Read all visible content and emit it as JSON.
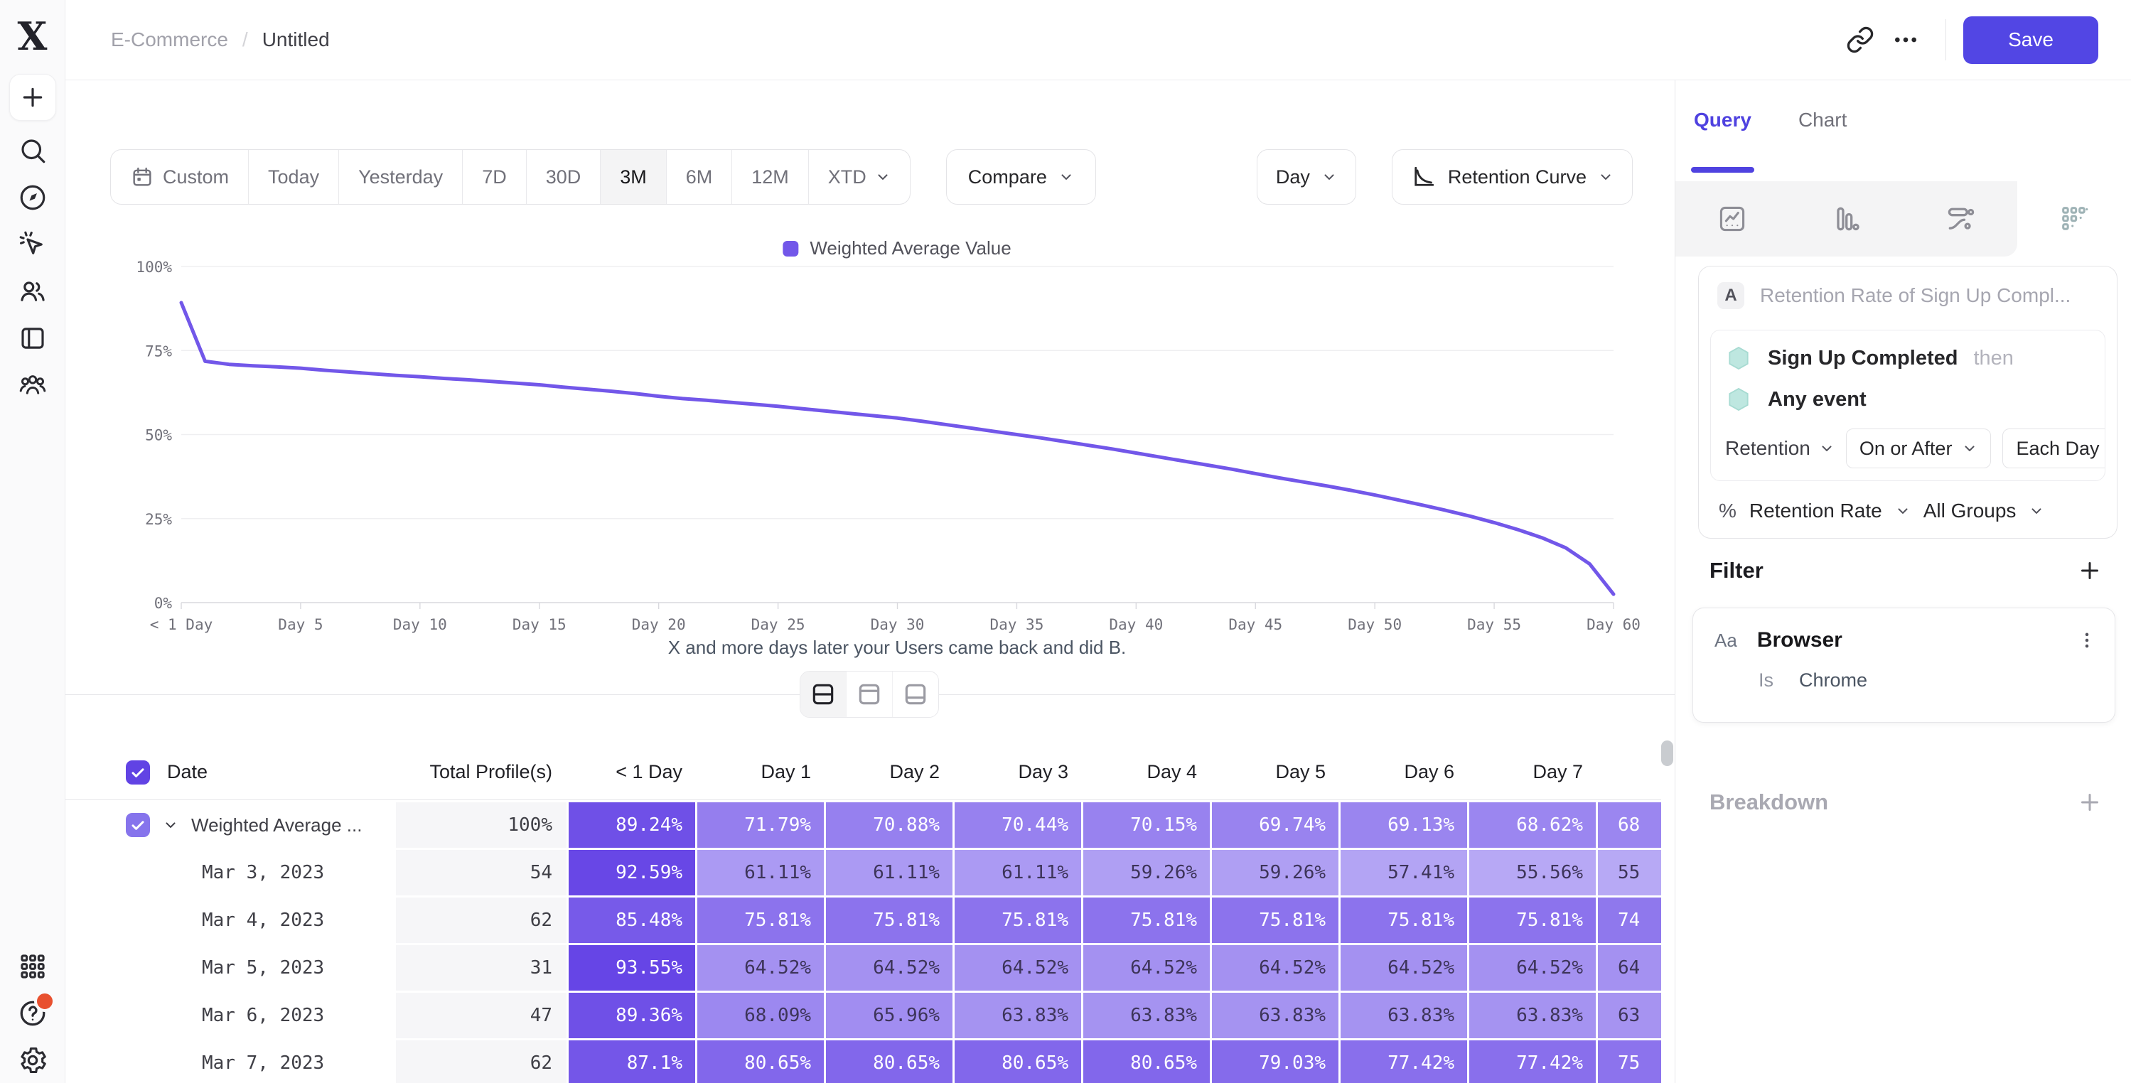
{
  "topbar": {
    "breadcrumb_parent": "E-Commerce",
    "breadcrumb_sep": "/",
    "breadcrumb_current": "Untitled",
    "save_label": "Save",
    "icons": [
      "link-icon",
      "more-icon"
    ]
  },
  "sidebar": {
    "icons": [
      "plus",
      "search",
      "compass",
      "magic-cursor",
      "users",
      "sidebar-panel",
      "team",
      "apps-grid",
      "help",
      "settings"
    ]
  },
  "toolbar": {
    "ranges": [
      {
        "label": "Custom",
        "icon": "calendar",
        "selected": false,
        "chevron": false
      },
      {
        "label": "Today",
        "selected": false,
        "chevron": false
      },
      {
        "label": "Yesterday",
        "selected": false,
        "chevron": false
      },
      {
        "label": "7D",
        "selected": false,
        "chevron": false
      },
      {
        "label": "30D",
        "selected": false,
        "chevron": false
      },
      {
        "label": "3M",
        "selected": true,
        "chevron": false
      },
      {
        "label": "6M",
        "selected": false,
        "chevron": false
      },
      {
        "label": "12M",
        "selected": false,
        "chevron": false
      },
      {
        "label": "XTD",
        "selected": false,
        "chevron": true
      }
    ],
    "compare_label": "Compare",
    "granularity_label": "Day",
    "chart_type_label": "Retention Curve"
  },
  "chart_data": {
    "type": "line",
    "legend_label": "Weighted Average Value",
    "caption": "X and more days later your Users came back and did B.",
    "color": "#7257E9",
    "ylim": [
      0,
      100
    ],
    "y_ticks": [
      "0%",
      "25%",
      "50%",
      "75%",
      "100%"
    ],
    "x_tick_days": [
      0,
      5,
      10,
      15,
      20,
      25,
      30,
      35,
      40,
      45,
      50,
      55,
      60
    ],
    "x_tick_labels": [
      "< 1 Day",
      "Day 5",
      "Day 10",
      "Day 15",
      "Day 20",
      "Day 25",
      "Day 30",
      "Day 35",
      "Day 40",
      "Day 45",
      "Day 50",
      "Day 55",
      "Day 60"
    ],
    "days": [
      0,
      1,
      2,
      3,
      4,
      5,
      6,
      7,
      8,
      9,
      10,
      11,
      12,
      13,
      14,
      15,
      16,
      17,
      18,
      19,
      20,
      21,
      22,
      23,
      24,
      25,
      26,
      27,
      28,
      29,
      30,
      31,
      32,
      33,
      34,
      35,
      36,
      37,
      38,
      39,
      40,
      41,
      42,
      43,
      44,
      45,
      46,
      47,
      48,
      49,
      50,
      51,
      52,
      53,
      54,
      55,
      56,
      57,
      58,
      59,
      60
    ],
    "values": [
      89.24,
      71.79,
      70.88,
      70.44,
      70.15,
      69.74,
      69.13,
      68.62,
      68.1,
      67.6,
      67.2,
      66.7,
      66.3,
      65.8,
      65.3,
      64.8,
      64.1,
      63.5,
      62.9,
      62.2,
      61.4,
      60.7,
      60.2,
      59.6,
      59.0,
      58.4,
      57.7,
      57.0,
      56.3,
      55.6,
      54.9,
      54.0,
      53.0,
      52.0,
      51.0,
      50.0,
      49.0,
      47.9,
      46.8,
      45.7,
      44.5,
      43.3,
      42.1,
      40.9,
      39.7,
      38.4,
      37.1,
      35.9,
      34.7,
      33.4,
      32.0,
      30.5,
      29.0,
      27.4,
      25.7,
      23.8,
      21.7,
      19.3,
      16.3,
      11.5,
      2.5
    ]
  },
  "table": {
    "columns": [
      "Date",
      "Total Profile(s)",
      "< 1 Day",
      "Day 1",
      "Day 2",
      "Day 3",
      "Day 4",
      "Day 5",
      "Day 6",
      "Day 7"
    ],
    "select_all_checked": true,
    "rows": [
      {
        "label": "Weighted Average ...",
        "has_checkbox": true,
        "checked": true,
        "expandable": true,
        "mono_label": false,
        "total": "100%",
        "cells": [
          "89.24%",
          "71.79%",
          "70.88%",
          "70.44%",
          "70.15%",
          "69.74%",
          "69.13%",
          "68.62%"
        ],
        "partial": {
          "text": "68",
          "value": 68.6
        }
      },
      {
        "label": "Mar 3, 2023",
        "has_checkbox": false,
        "mono_label": true,
        "total": "54",
        "cells": [
          "92.59%",
          "61.11%",
          "61.11%",
          "61.11%",
          "59.26%",
          "59.26%",
          "57.41%",
          "55.56%"
        ],
        "partial": {
          "text": "55",
          "value": 55.5
        }
      },
      {
        "label": "Mar 4, 2023",
        "has_checkbox": false,
        "mono_label": true,
        "total": "62",
        "cells": [
          "85.48%",
          "75.81%",
          "75.81%",
          "75.81%",
          "75.81%",
          "75.81%",
          "75.81%",
          "75.81%"
        ],
        "partial": {
          "text": "74",
          "value": 74.2
        }
      },
      {
        "label": "Mar 5, 2023",
        "has_checkbox": false,
        "mono_label": true,
        "total": "31",
        "cells": [
          "93.55%",
          "64.52%",
          "64.52%",
          "64.52%",
          "64.52%",
          "64.52%",
          "64.52%",
          "64.52%"
        ],
        "partial": {
          "text": "64",
          "value": 64.5
        }
      },
      {
        "label": "Mar 6, 2023",
        "has_checkbox": false,
        "mono_label": true,
        "total": "47",
        "cells": [
          "89.36%",
          "68.09%",
          "65.96%",
          "63.83%",
          "63.83%",
          "63.83%",
          "63.83%",
          "63.83%"
        ],
        "partial": {
          "text": "63",
          "value": 63.8
        }
      },
      {
        "label": "Mar 7, 2023",
        "has_checkbox": false,
        "mono_label": true,
        "total": "62",
        "cells": [
          "87.1%",
          "80.65%",
          "80.65%",
          "80.65%",
          "80.65%",
          "79.03%",
          "77.42%",
          "77.42%"
        ],
        "partial": {
          "text": "75",
          "value": 75.8
        }
      }
    ]
  },
  "panel": {
    "tabs": [
      {
        "label": "Query",
        "active": true
      },
      {
        "label": "Chart",
        "active": false
      }
    ],
    "view_tiles": [
      "insights-icon",
      "funnel-icon",
      "flows-icon",
      "retention-icon"
    ],
    "query": {
      "badge": "A",
      "title": "Retention Rate of Sign Up Compl...",
      "step1": "Sign Up Completed",
      "then_label": "then",
      "step2": "Any event",
      "retention_label": "Retention",
      "on_or_after": "On or After",
      "each_day": "Each Day",
      "measure_prefix": "%",
      "measure": "Retention Rate",
      "groups": "All Groups"
    },
    "filter": {
      "title": "Filter",
      "property_type": "Aa",
      "property": "Browser",
      "operator": "Is",
      "value": "Chrome"
    },
    "breakdown": {
      "title": "Breakdown"
    }
  },
  "colors": {
    "accent": "#5246E4",
    "curve": "#7257E9",
    "tab_active": "#4F42E0",
    "checkbox_header": "#6143E4",
    "checkbox_row": "#8674EC",
    "cell_scale_light": "#C3B7F7",
    "cell_scale_dark": "#6341E5",
    "cell_text_dark": "#3D3459",
    "hexagon": "#BEE7E0",
    "notification": "#E8502F"
  }
}
